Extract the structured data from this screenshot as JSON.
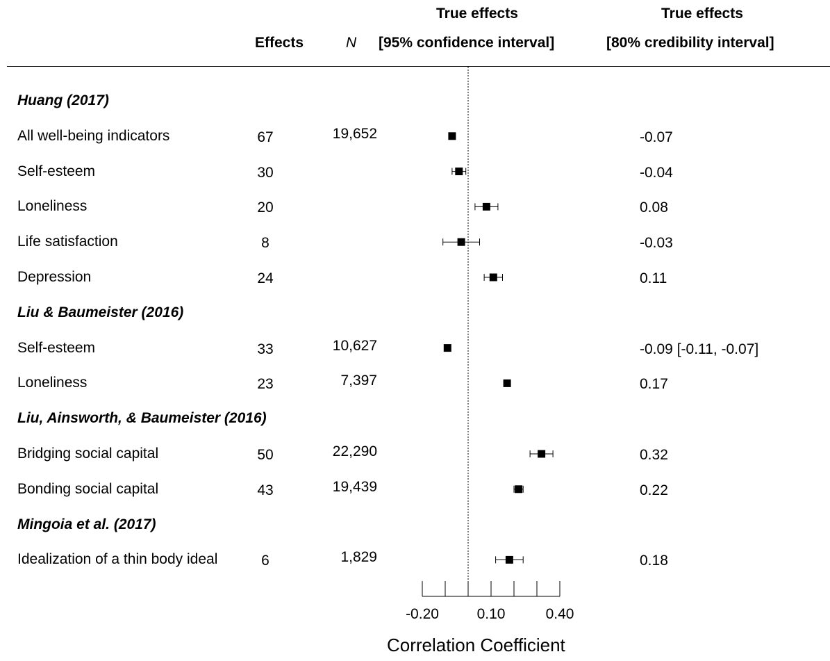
{
  "header": {
    "effects": "Effects",
    "n": "N",
    "ci_line1": "True effects",
    "ci_line2": "[95% confidence interval]",
    "cr_line1": "True effects",
    "cr_line2": "[80% credibility interval]"
  },
  "chart_data": {
    "type": "forest",
    "xlabel": "Correlation Coefficient",
    "xlim": [
      -0.2,
      0.4
    ],
    "tick_labels": [
      "-0.20",
      "0.10",
      "0.40"
    ],
    "reference_line": 0,
    "rows": [
      {
        "kind": "group",
        "label": "Huang (2017)"
      },
      {
        "kind": "study",
        "label": "All well-being indicators",
        "effects": "67",
        "n": "19,652",
        "est": -0.07,
        "ci": null,
        "cr_text": "-0.07"
      },
      {
        "kind": "study",
        "label": "Self-esteem",
        "effects": "30",
        "n": "",
        "est": -0.04,
        "ci": [
          -0.07,
          -0.01
        ],
        "cr_text": "-0.04"
      },
      {
        "kind": "study",
        "label": "Loneliness",
        "effects": "20",
        "n": "",
        "est": 0.08,
        "ci": [
          0.03,
          0.13
        ],
        "cr_text": "0.08"
      },
      {
        "kind": "study",
        "label": "Life satisfaction",
        "effects": "8",
        "n": "",
        "est": -0.03,
        "ci": [
          -0.11,
          0.05
        ],
        "cr_text": "-0.03"
      },
      {
        "kind": "study",
        "label": "Depression",
        "effects": "24",
        "n": "",
        "est": 0.11,
        "ci": [
          0.07,
          0.15
        ],
        "cr_text": "0.11"
      },
      {
        "kind": "group",
        "label": "Liu & Baumeister (2016)"
      },
      {
        "kind": "study",
        "label": "Self-esteem",
        "effects": "33",
        "n": "10,627",
        "est": -0.09,
        "ci": null,
        "cr_text": "-0.09 [-0.11, -0.07]"
      },
      {
        "kind": "study",
        "label": "Loneliness",
        "effects": "23",
        "n": "7,397",
        "est": 0.17,
        "ci": null,
        "cr_text": "0.17"
      },
      {
        "kind": "group",
        "label": "Liu, Ainsworth, & Baumeister (2016)"
      },
      {
        "kind": "study",
        "label": "Bridging social capital",
        "effects": "50",
        "n": "22,290",
        "est": 0.32,
        "ci": [
          0.27,
          0.37
        ],
        "cr_text": "0.32"
      },
      {
        "kind": "study",
        "label": "Bonding social capital",
        "effects": "43",
        "n": "19,439",
        "est": 0.22,
        "ci": [
          0.2,
          0.24
        ],
        "cr_text": "0.22"
      },
      {
        "kind": "group",
        "label": "Mingoia et al. (2017)"
      },
      {
        "kind": "study",
        "label": "Idealization of a thin body ideal",
        "effects": "6",
        "n": "1,829",
        "est": 0.18,
        "ci": [
          0.12,
          0.24
        ],
        "cr_text": "0.18"
      }
    ]
  }
}
